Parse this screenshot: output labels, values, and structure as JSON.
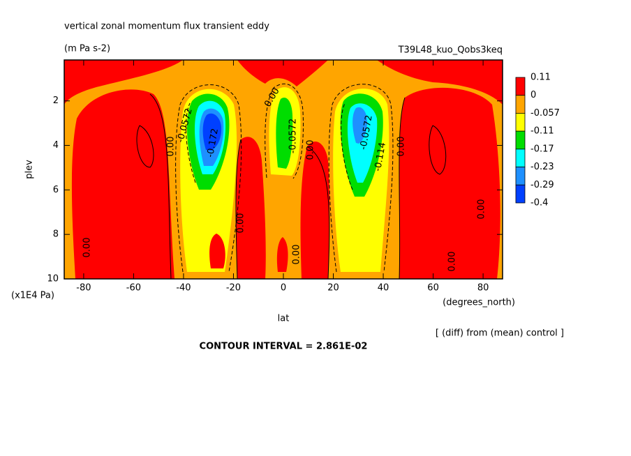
{
  "chart_data": {
    "type": "contour",
    "title": "vertical zonal momentum flux transient eddy",
    "subtitle": "(m Pa s-2)",
    "dataset": "T39L48_kuo_Qobs3keq",
    "xlabel": "lat",
    "ylabel": "plev",
    "xunits": "(degrees_north)",
    "yunits": "(x1E4 Pa)",
    "note": "[ (diff) from (mean) control ]",
    "contour_interval": "CONTOUR INTERVAL = 2.861E-02",
    "xlim": [
      -87.8,
      87.8
    ],
    "ylim": [
      10,
      0.16
    ],
    "xticks": [
      -80,
      -60,
      -40,
      -20,
      0,
      20,
      40,
      60,
      80
    ],
    "yticks": [
      2,
      4,
      6,
      8,
      10
    ],
    "levels": [
      0.11,
      0,
      -0.057,
      -0.11,
      -0.17,
      -0.23,
      -0.29,
      -0.4
    ],
    "colors": [
      "#ff0000",
      "#ffa500",
      "#ffff00",
      "#00dd00",
      "#00ffff",
      "#1e90ff",
      "#0040ff"
    ],
    "contour_labels": [
      "0.00",
      "0.00",
      "0.00",
      "-0.0572",
      "-0.172",
      "0.00",
      "-0.0572",
      "0.00",
      "0.00",
      "-0.0572",
      "-0.114",
      "0.00",
      "0.00",
      "0.00"
    ]
  }
}
